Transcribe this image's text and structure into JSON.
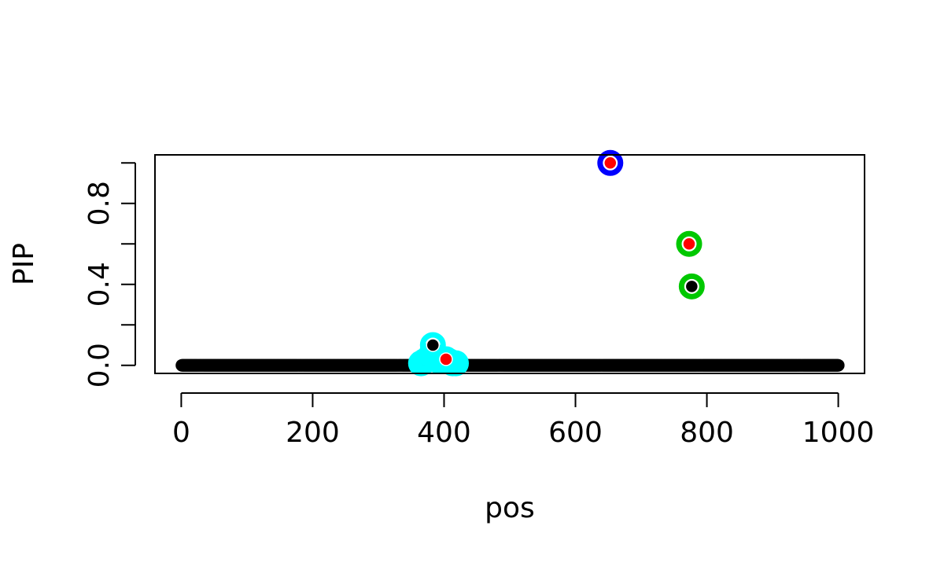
{
  "chart_data": {
    "type": "scatter",
    "title": "",
    "xlabel": "pos",
    "ylabel": "PIP",
    "xlim": [
      -40,
      1040
    ],
    "ylim": [
      -0.04,
      1.04
    ],
    "x_ticks": [
      0,
      200,
      400,
      600,
      800,
      1000
    ],
    "x_tick_labels": [
      "0",
      "200",
      "400",
      "600",
      "800",
      "1000"
    ],
    "y_ticks": [
      0.0,
      0.2,
      0.4,
      0.6,
      0.8,
      1.0
    ],
    "y_tick_labels": [
      "0.0",
      "",
      "0.4",
      "",
      "0.8",
      ""
    ],
    "grid": false,
    "background_points": {
      "x_from": 1,
      "x_to": 1000,
      "y": 0,
      "color": "#000000"
    },
    "series": [
      {
        "color": "#0000ff",
        "points": [
          {
            "x": 653,
            "y": 1.0
          }
        ]
      },
      {
        "color": "#00c800",
        "points": [
          {
            "x": 773,
            "y": 0.6
          },
          {
            "x": 777,
            "y": 0.39
          }
        ]
      },
      {
        "color": "#00ffff",
        "points": [
          {
            "x": 365,
            "y": 0.01
          },
          {
            "x": 370,
            "y": 0.02
          },
          {
            "x": 375,
            "y": 0.03
          },
          {
            "x": 380,
            "y": 0.05
          },
          {
            "x": 383,
            "y": 0.1
          },
          {
            "x": 388,
            "y": 0.04
          },
          {
            "x": 393,
            "y": 0.02
          },
          {
            "x": 398,
            "y": 0.03
          },
          {
            "x": 403,
            "y": 0.03
          },
          {
            "x": 408,
            "y": 0.02
          },
          {
            "x": 413,
            "y": 0.01
          },
          {
            "x": 418,
            "y": 0.01
          }
        ]
      }
    ],
    "highlight_points": [
      {
        "x": 653,
        "y": 1.0,
        "color": "#ff0000"
      },
      {
        "x": 773,
        "y": 0.6,
        "color": "#ff0000"
      },
      {
        "x": 777,
        "y": 0.39,
        "color": "#000000"
      },
      {
        "x": 383,
        "y": 0.1,
        "color": "#000000"
      },
      {
        "x": 403,
        "y": 0.03,
        "color": "#ff0000"
      }
    ]
  }
}
